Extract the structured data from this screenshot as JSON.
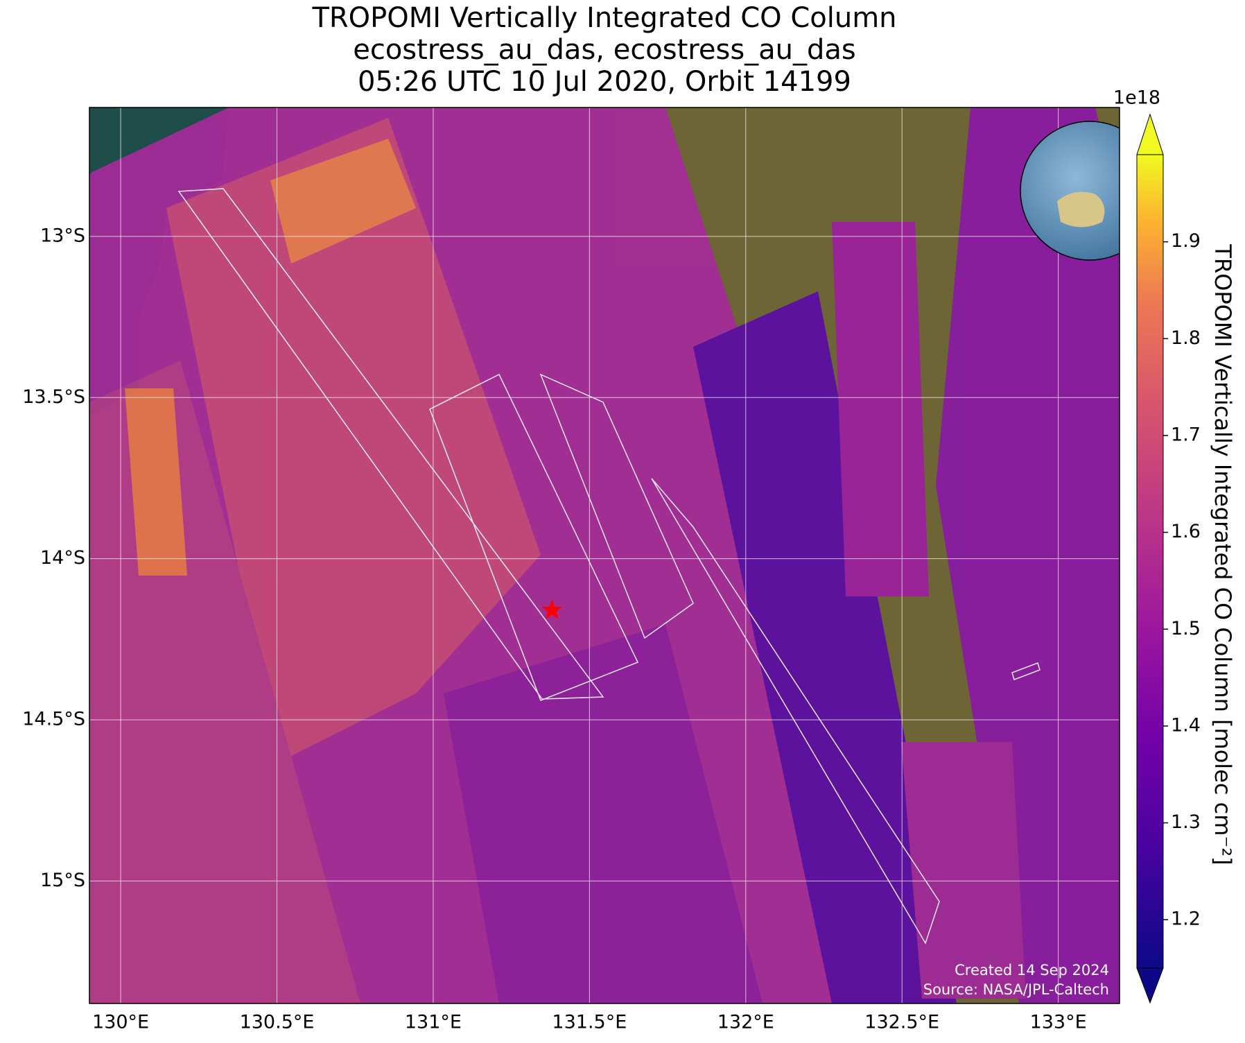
{
  "chart_data": {
    "type": "map",
    "title": [
      "TROPOMI Vertically Integrated CO Column",
      "ecostress_au_das, ecostress_au_das",
      "05:26 UTC 10 Jul 2020, Orbit 14199"
    ],
    "xlim": [
      129.9,
      133.196
    ],
    "ylim": [
      -15.38,
      -12.6
    ],
    "xticks": [
      {
        "value": 130,
        "label": "130°E"
      },
      {
        "value": 130.5,
        "label": "130.5°E"
      },
      {
        "value": 131,
        "label": "131°E"
      },
      {
        "value": 131.5,
        "label": "131.5°E"
      },
      {
        "value": 132,
        "label": "132°E"
      },
      {
        "value": 132.5,
        "label": "132.5°E"
      },
      {
        "value": 133,
        "label": "133°E"
      }
    ],
    "yticks": [
      {
        "value": -13,
        "label": "13°S"
      },
      {
        "value": -13.5,
        "label": "13.5°S"
      },
      {
        "value": -14,
        "label": "14°S"
      },
      {
        "value": -14.5,
        "label": "14.5°S"
      },
      {
        "value": -15,
        "label": "15°S"
      }
    ],
    "grid": true,
    "target": {
      "lon": 131.38,
      "lat": -14.16,
      "color": "#ff0000"
    },
    "colorbar": {
      "label": "TROPOMI Vertically Integrated CO Column [molec cm⁻²]",
      "offset_label": "1e18",
      "colormap": "plasma",
      "clim": [
        1.15,
        1.99
      ],
      "ticks": [
        1.2,
        1.3,
        1.4,
        1.5,
        1.6,
        1.7,
        1.8,
        1.9
      ]
    },
    "credits": [
      "Created 14 Sep 2024",
      "Source: NASA/JPL-Caltech"
    ]
  }
}
